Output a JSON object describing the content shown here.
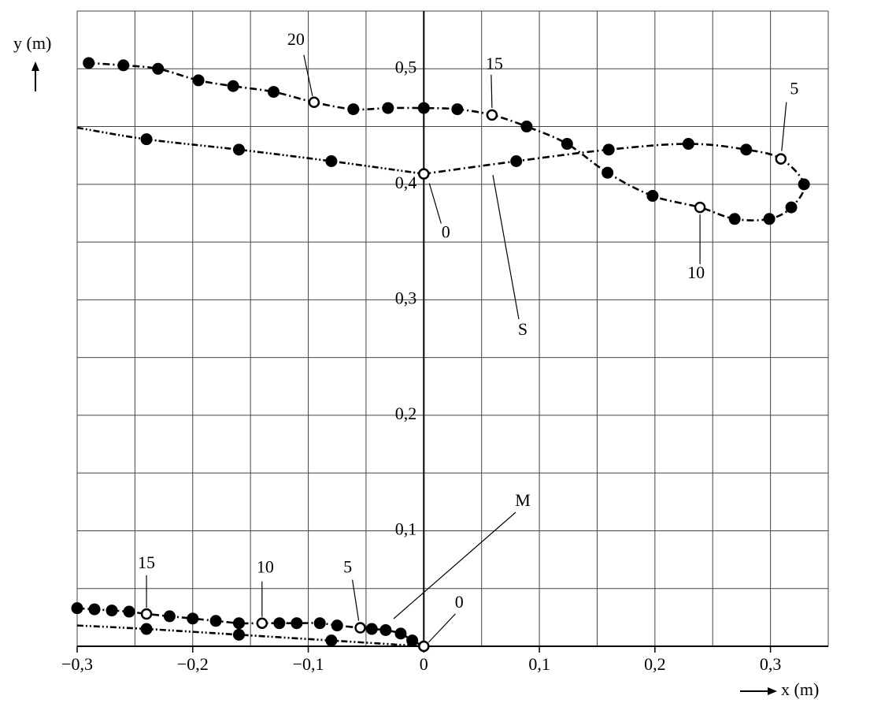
{
  "chart_data": {
    "type": "trajectory",
    "x_label": "x (m)",
    "y_label": "y (m)",
    "xlim": [
      -0.3,
      0.35
    ],
    "ylim": [
      0,
      0.55
    ],
    "xticks": [
      {
        "value": -0.3,
        "label": "−0,3"
      },
      {
        "value": -0.2,
        "label": "−0,2"
      },
      {
        "value": -0.1,
        "label": "−0,1"
      },
      0,
      {
        "value": 0.1,
        "label": "0,1"
      },
      {
        "value": 0.2,
        "label": "0,2"
      },
      {
        "value": 0.3,
        "label": "0,3"
      }
    ],
    "yticks": [
      {
        "value": 0.1,
        "label": "0,1"
      },
      {
        "value": 0.2,
        "label": "0,2"
      },
      {
        "value": 0.3,
        "label": "0,3"
      },
      {
        "value": 0.4,
        "label": "0,4"
      },
      {
        "value": 0.5,
        "label": "0,5"
      }
    ],
    "xgrid": [
      -0.3,
      -0.25,
      -0.2,
      -0.15,
      -0.1,
      -0.05,
      0,
      0.05,
      0.1,
      0.15,
      0.2,
      0.25,
      0.3,
      0.35
    ],
    "ygrid": [
      0,
      0.05,
      0.1,
      0.15,
      0.2,
      0.25,
      0.3,
      0.35,
      0.4,
      0.45,
      0.5,
      0.55
    ],
    "grid": true,
    "series": [
      {
        "name": "S",
        "color": "#000000",
        "dash": "9 4 2 4",
        "x": [
          0,
          0.08,
          0.16,
          0.229,
          0.279,
          0.309,
          0.329,
          0.318,
          0.299,
          0.269,
          0.239,
          0.198,
          0.159,
          0.124,
          0.089,
          0.059,
          0.029,
          0,
          -0.031,
          -0.061,
          -0.095,
          -0.13,
          -0.165,
          -0.195,
          -0.23,
          -0.26,
          -0.29
        ],
        "values": [
          0.409,
          0.42,
          0.43,
          0.435,
          0.43,
          0.422,
          0.4,
          0.38,
          0.37,
          0.37,
          0.38,
          0.39,
          0.41,
          0.435,
          0.45,
          0.46,
          0.465,
          0.466,
          0.466,
          0.465,
          0.471,
          0.48,
          0.485,
          0.49,
          0.5,
          0.503,
          0.505
        ],
        "marker": [
          "open",
          "filled",
          "filled",
          "filled",
          "filled",
          "open",
          "filled",
          "filled",
          "filled",
          "filled",
          "open",
          "filled",
          "filled",
          "filled",
          "filled",
          "open",
          "filled",
          "filled",
          "filled",
          "filled",
          "open",
          "filled",
          "filled",
          "filled",
          "filled",
          "filled",
          "filled"
        ],
        "point_labels": [
          "0",
          null,
          null,
          null,
          null,
          "5",
          null,
          null,
          null,
          null,
          "10",
          null,
          null,
          null,
          null,
          "15",
          null,
          null,
          null,
          null,
          "20",
          null,
          null,
          null,
          null,
          null,
          null
        ]
      },
      {
        "color": "#000000",
        "dash": "8 3 2 3 2 3",
        "x": [
          -0.3,
          -0.24,
          -0.16,
          -0.08,
          0
        ],
        "values": [
          0.449,
          0.439,
          0.43,
          0.42,
          0.409
        ],
        "marker": [
          null,
          "filled",
          "filled",
          "filled",
          null
        ]
      },
      {
        "name": "M",
        "color": "#000000",
        "dash": "9 4 2 4",
        "x": [
          0,
          -0.01,
          -0.02,
          -0.033,
          -0.045,
          -0.055,
          -0.075,
          -0.09,
          -0.11,
          -0.125,
          -0.14,
          -0.16,
          -0.18,
          -0.2,
          -0.22,
          -0.24,
          -0.255,
          -0.27,
          -0.285,
          -0.3
        ],
        "values": [
          0,
          0.005,
          0.011,
          0.014,
          0.015,
          0.016,
          0.018,
          0.02,
          0.02,
          0.02,
          0.02,
          0.02,
          0.022,
          0.024,
          0.026,
          0.028,
          0.03,
          0.031,
          0.032,
          0.033
        ],
        "marker": [
          "open",
          "filled",
          "filled",
          "filled",
          "filled",
          "open",
          "filled",
          "filled",
          "filled",
          "filled",
          "open",
          "filled",
          "filled",
          "filled",
          "filled",
          "open",
          "filled",
          "filled",
          "filled",
          "filled"
        ],
        "point_labels": [
          "0",
          null,
          null,
          null,
          null,
          "5",
          null,
          null,
          null,
          null,
          "10",
          null,
          null,
          null,
          null,
          "15",
          null,
          null,
          null,
          null
        ]
      },
      {
        "color": "#000000",
        "dash": "8 3 2 3 2 3",
        "x": [
          -0.3,
          -0.24,
          -0.16,
          -0.08,
          0
        ],
        "values": [
          0.018,
          0.015,
          0.01,
          0.005,
          0
        ],
        "marker": [
          null,
          "filled",
          "filled",
          "filled",
          null
        ]
      }
    ]
  }
}
